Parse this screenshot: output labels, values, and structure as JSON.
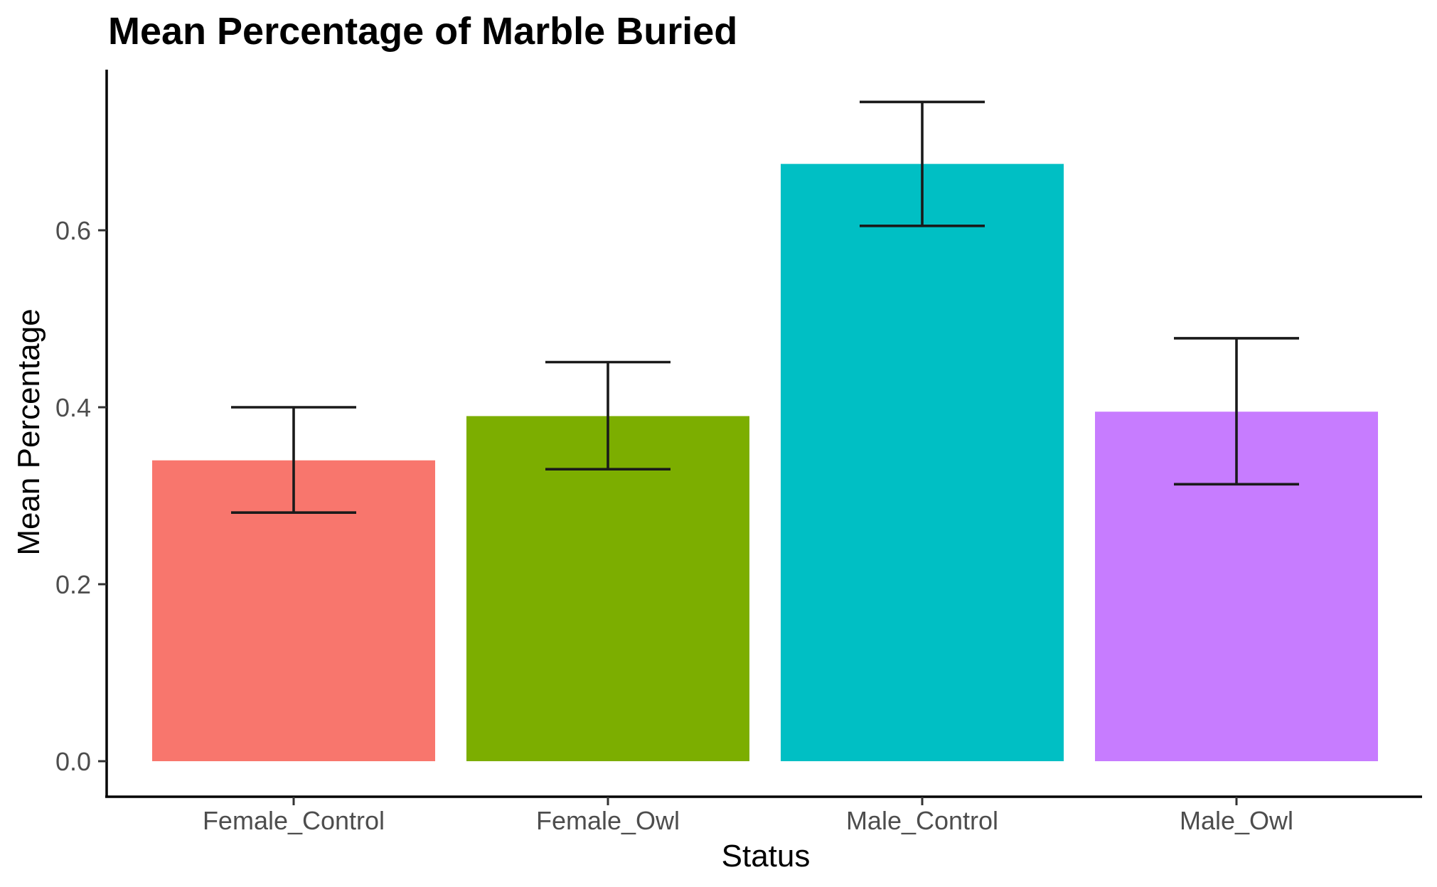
{
  "chart_data": {
    "type": "bar",
    "title": "Mean Percentage of Marble Buried",
    "xlabel": "Status",
    "ylabel": "Mean Percentage",
    "categories": [
      "Female_Control",
      "Female_Owl",
      "Male_Control",
      "Male_Owl"
    ],
    "values": [
      0.34,
      0.39,
      0.675,
      0.395
    ],
    "error_lower": [
      0.281,
      0.33,
      0.605,
      0.313
    ],
    "error_upper": [
      0.4,
      0.451,
      0.745,
      0.478
    ],
    "colors": [
      "#F8766D",
      "#7CAE00",
      "#00BFC4",
      "#C77CFF"
    ],
    "ylim": [
      -0.04,
      0.78
    ],
    "yticks": [
      0.0,
      0.2,
      0.4,
      0.6
    ],
    "ytick_labels": [
      "0.0",
      "0.2",
      "0.4",
      "0.6"
    ],
    "grid": false,
    "legend": "none"
  }
}
